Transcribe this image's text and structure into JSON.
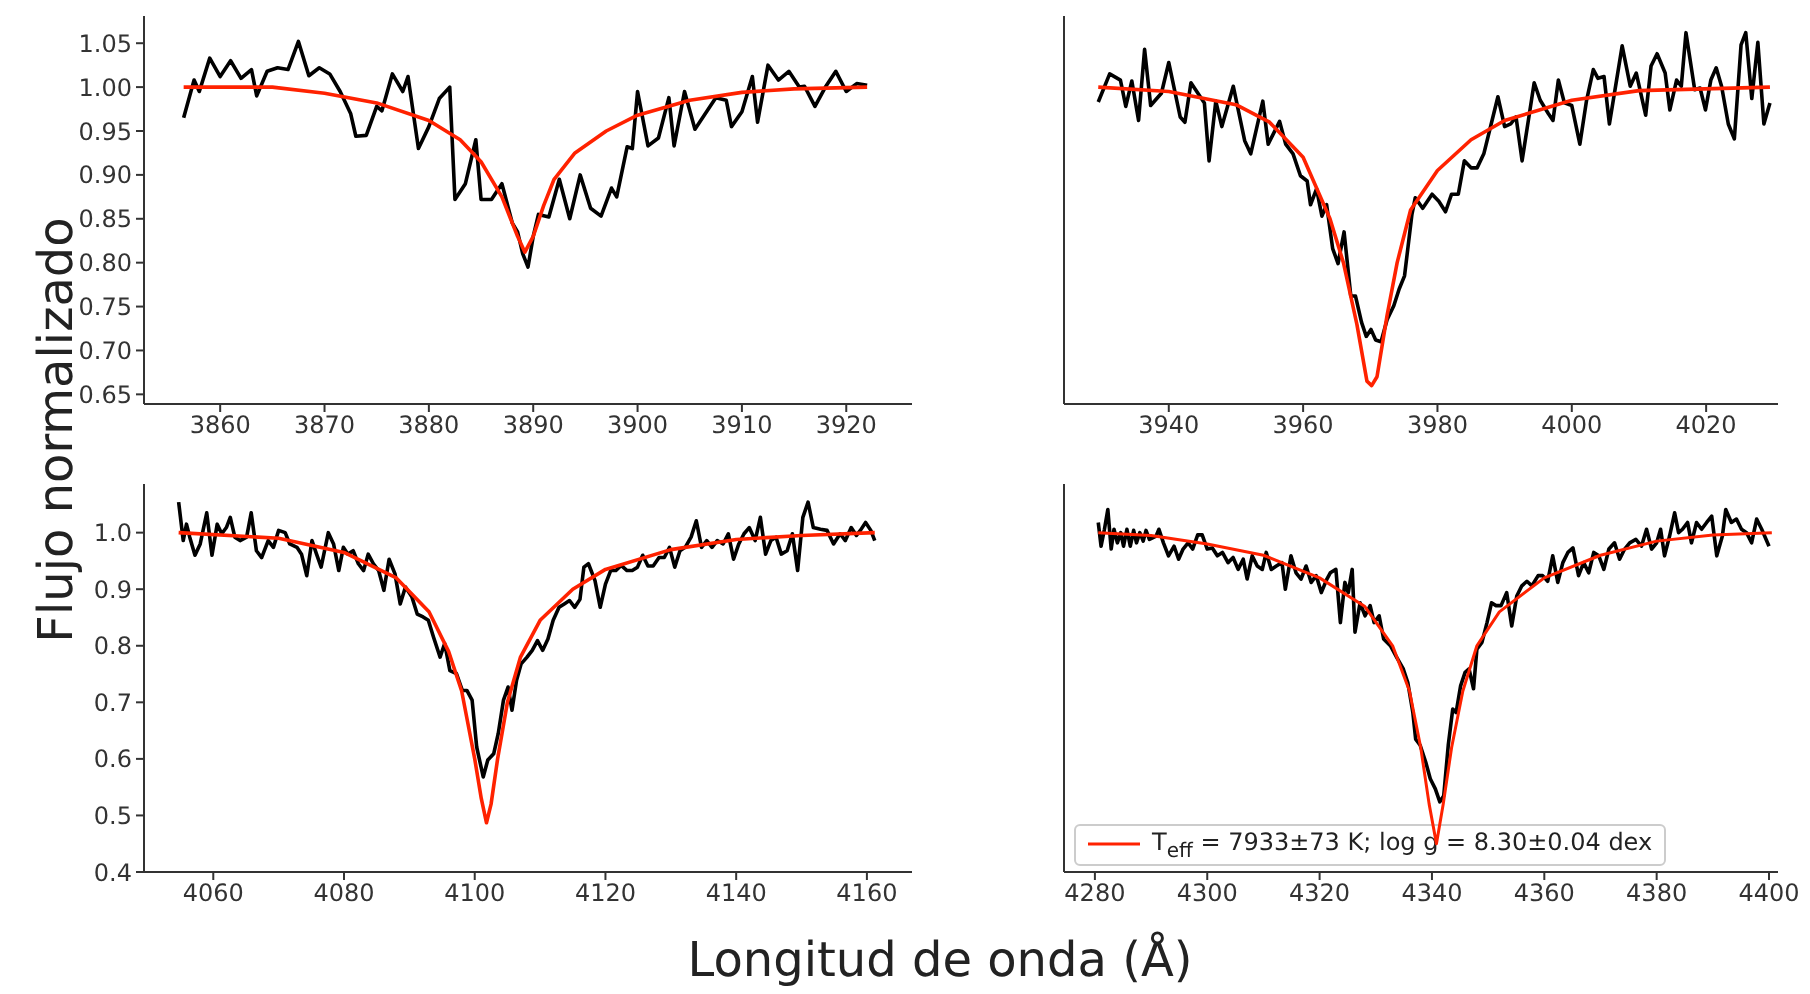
{
  "chart_data": [
    {
      "type": "line",
      "ylabel": "Flujo normalizado",
      "xlim": [
        3852.7,
        3926.3
      ],
      "xticks": [
        3860,
        3870,
        3880,
        3890,
        3900,
        3910,
        3920
      ],
      "ylim": [
        0.639,
        1.081
      ],
      "yticks": [
        0.65,
        {
          "value": 0.7,
          "label": "0.70"
        },
        0.75,
        {
          "value": 0.8,
          "label": "0.80"
        },
        0.85,
        {
          "value": 0.9,
          "label": "0.90"
        },
        0.95,
        {
          "value": 1,
          "label": "1.00"
        },
        1.05
      ],
      "series": [
        {
          "color": "#000000",
          "x": [
            3856.5,
            3857.5,
            3858,
            3859,
            3860,
            3861,
            3862,
            3863,
            3863.5,
            3864.5,
            3865.5,
            3866.5,
            3867.5,
            3868.5,
            3869.5,
            3870.5,
            3871.5,
            3872.5,
            3873,
            3874,
            3875,
            3875.5,
            3876.5,
            3877.5,
            3878,
            3879,
            3880,
            3881,
            3882,
            3882.5,
            3883.5,
            3884.5,
            3885,
            3886,
            3887,
            3888,
            3888.5,
            3889,
            3889.5,
            3890,
            3890.5,
            3891.5,
            3892.5,
            3893.5,
            3894.5,
            3895.5,
            3896.5,
            3897.5,
            3898,
            3899,
            3899.5,
            3900,
            3901,
            3902,
            3903,
            3903.5,
            3904.5,
            3905.5,
            3906.5,
            3907.5,
            3908.5,
            3909,
            3910,
            3911,
            3911.5,
            3912.5,
            3913.5,
            3914.5,
            3915.5,
            3916,
            3917,
            3918,
            3919,
            3920,
            3921,
            3922
          ],
          "values": [
            0.965,
            1.008,
            0.995,
            1.033,
            1.012,
            1.03,
            1.01,
            1.02,
            0.99,
            1.018,
            1.022,
            1.02,
            1.052,
            1.013,
            1.022,
            1.015,
            0.995,
            0.97,
            0.944,
            0.945,
            0.978,
            0.973,
            1.015,
            0.995,
            1.012,
            0.93,
            0.955,
            0.987,
            1.0,
            0.872,
            0.89,
            0.94,
            0.872,
            0.872,
            0.89,
            0.845,
            0.835,
            0.81,
            0.795,
            0.83,
            0.855,
            0.852,
            0.895,
            0.85,
            0.9,
            0.862,
            0.853,
            0.885,
            0.875,
            0.932,
            0.93,
            0.995,
            0.933,
            0.942,
            0.988,
            0.933,
            0.995,
            0.952,
            0.97,
            0.988,
            0.985,
            0.955,
            0.972,
            1.012,
            0.96,
            1.025,
            1.008,
            1.018,
            1.0,
            1.001,
            0.978,
            1.0,
            1.018,
            0.995,
            1.004,
            1.002
          ]
        },
        {
          "color": "#ff2200",
          "x": [
            3856.5,
            3865,
            3870,
            3875,
            3880,
            3883,
            3885,
            3887,
            3888.5,
            3889.2,
            3890,
            3891,
            3892,
            3894,
            3897,
            3900,
            3905,
            3910,
            3915,
            3922
          ],
          "values": [
            1.0,
            1.0,
            0.993,
            0.982,
            0.962,
            0.94,
            0.915,
            0.875,
            0.83,
            0.812,
            0.83,
            0.865,
            0.895,
            0.925,
            0.95,
            0.968,
            0.985,
            0.994,
            0.998,
            1.0
          ]
        }
      ]
    },
    {
      "type": "line",
      "tick_labels": "x",
      "xlim": [
        3924.4,
        4030.7
      ],
      "xticks": [
        3940,
        3960,
        3980,
        4000,
        4020
      ],
      "ylim": [
        0.639,
        1.081
      ],
      "yticks": [
        0.65,
        0.7,
        0.75,
        0.8,
        0.85,
        0.9,
        0.95,
        1,
        1.05
      ],
      "series": [
        {
          "color": "#000000",
          "x": [
            3929.5,
            3931.2,
            3932.8,
            3933.6,
            3934.5,
            3935.5,
            3936.4,
            3937.3,
            3938.9,
            3940,
            3941.7,
            3942.4,
            3943.3,
            3945.3,
            3946.0,
            3947.0,
            3947.9,
            3949.6,
            3951.3,
            3952.2,
            3954.0,
            3954.8,
            3956.5,
            3957.4,
            3958.5,
            3959.6,
            3960.6,
            3961.1,
            3962.0,
            3962.8,
            3963.5,
            3964.4,
            3965.2,
            3966.1,
            3967.1,
            3967.8,
            3968.7,
            3969.4,
            3970.1,
            3970.8,
            3971.6,
            3972.5,
            3973.5,
            3974.3,
            3975.1,
            3976.2,
            3976.7,
            3977.8,
            3979.2,
            3980.2,
            3981.2,
            3982.1,
            3983.1,
            3984.0,
            3985.0,
            3985.9,
            3986.9,
            3988.0,
            3989.0,
            3990.0,
            3990.9,
            3991.7,
            3992.6,
            3994.4,
            3995.3,
            3996.5,
            3997.2,
            3998.0,
            3998.9,
            4000.0,
            4001.2,
            4002.2,
            4003.2,
            4003.9,
            4004.8,
            4005.6,
            4007.5,
            4008.7,
            4009.6,
            4011.0,
            4011.8,
            4012.7,
            4013.9,
            4014.6,
            4015.6,
            4016.3,
            4017.0,
            4018.3,
            4019.1,
            4019.9,
            4020.7,
            4021.5,
            4022.3,
            4023.3,
            4024.2,
            4025.2,
            4025.9,
            4026.8,
            4027.7,
            4028.6,
            4029.5
          ],
          "values": [
            0.983,
            1.015,
            1.008,
            0.978,
            1.007,
            0.962,
            1.043,
            0.979,
            0.993,
            1.028,
            0.966,
            0.96,
            1.005,
            0.982,
            0.916,
            0.984,
            0.955,
            1.001,
            0.939,
            0.924,
            0.984,
            0.935,
            0.961,
            0.935,
            0.924,
            0.899,
            0.893,
            0.866,
            0.884,
            0.853,
            0.866,
            0.816,
            0.799,
            0.835,
            0.762,
            0.762,
            0.732,
            0.716,
            0.724,
            0.712,
            0.71,
            0.735,
            0.751,
            0.77,
            0.785,
            0.855,
            0.874,
            0.862,
            0.878,
            0.87,
            0.858,
            0.878,
            0.878,
            0.916,
            0.908,
            0.908,
            0.924,
            0.958,
            0.989,
            0.955,
            0.958,
            0.966,
            0.916,
            1.005,
            0.985,
            0.97,
            0.962,
            1.008,
            0.982,
            0.979,
            0.935,
            0.985,
            1.02,
            1.01,
            1.012,
            0.958,
            1.047,
            1.001,
            1.016,
            0.968,
            1.024,
            1.038,
            1.016,
            0.974,
            1.008,
            1.001,
            1.062,
            0.997,
            0.999,
            0.974,
            1.008,
            1.022,
            1.001,
            0.958,
            0.941,
            1.048,
            1.062,
            0.987,
            1.051,
            0.958,
            0.982
          ]
        },
        {
          "color": "#ff2200",
          "x": [
            3929.5,
            3940,
            3950,
            3955,
            3960,
            3964,
            3966,
            3968,
            3969.5,
            3970.2,
            3971,
            3972.5,
            3974,
            3976,
            3980,
            3985,
            3990,
            4000,
            4010,
            4029.5
          ],
          "values": [
            1.0,
            0.995,
            0.98,
            0.96,
            0.92,
            0.85,
            0.8,
            0.73,
            0.665,
            0.66,
            0.67,
            0.74,
            0.8,
            0.86,
            0.905,
            0.94,
            0.962,
            0.985,
            0.996,
            1.0
          ]
        }
      ]
    },
    {
      "type": "line",
      "xlabel": "Longitud de onda (Å)",
      "xlim": [
        4049.4,
        4166.9
      ],
      "xticks": [
        4060,
        4080,
        4100,
        4120,
        4140,
        4160
      ],
      "ylim": [
        0.4,
        1.086
      ],
      "yticks": [
        0.4,
        0.5,
        0.6,
        0.7,
        0.8,
        0.9,
        {
          "value": 1,
          "label": "1.0"
        }
      ],
      "series": [
        {
          "color": "#000000",
          "x": [
            4054.7,
            4055.4,
            4055.9,
            4056.4,
            4057.2,
            4058.0,
            4059.0,
            4059.8,
            4060.6,
            4061.3,
            4062.0,
            4062.6,
            4063.3,
            4064.1,
            4065.1,
            4065.8,
            4066.6,
            4067.4,
            4068.4,
            4069.2,
            4070.0,
            4071.0,
            4071.7,
            4072.8,
            4073.5,
            4074.3,
            4075.1,
            4075.8,
            4076.5,
            4077.6,
            4078.4,
            4079.2,
            4079.9,
            4080.6,
            4081.4,
            4082.2,
            4083.0,
            4083.7,
            4084.5,
            4085.3,
            4086.1,
            4086.9,
            4087.8,
            4088.6,
            4089.4,
            4090.4,
            4091.2,
            4092.1,
            4092.9,
            4093.7,
            4094.7,
            4095.4,
            4096.2,
            4097.2,
            4098.1,
            4098.8,
            4099.6,
            4100.3,
            4101.3,
            4102.0,
            4102.9,
            4103.6,
            4104.4,
            4105.1,
            4105.7,
            4106.4,
            4107.1,
            4108.0,
            4108.8,
            4109.6,
            4110.4,
            4111.2,
            4112.0,
            4112.9,
            4113.7,
            4114.5,
            4115.3,
            4116.1,
            4116.7,
            4117.4,
            4118.4,
            4119.2,
            4120.0,
            4120.8,
            4121.6,
            4122.4,
            4123.3,
            4124.1,
            4124.9,
            4125.7,
            4126.5,
            4127.3,
            4128.2,
            4129.0,
            4129.8,
            4130.6,
            4131.4,
            4132.2,
            4133.1,
            4133.9,
            4134.7,
            4135.5,
            4136.3,
            4137.1,
            4138.0,
            4138.8,
            4139.6,
            4140.4,
            4141.2,
            4142.0,
            4142.9,
            4143.7,
            4144.5,
            4145.3,
            4146.1,
            4146.9,
            4147.8,
            4148.6,
            4149.4,
            4150.2,
            4151.0,
            4151.8,
            4152.9,
            4153.9,
            4154.9,
            4155.9,
            4156.7,
            4157.6,
            4158.4,
            4159.0,
            4159.8,
            4160.6,
            4161.2
          ],
          "values": [
            1.054,
            0.986,
            1.015,
            0.992,
            0.96,
            0.98,
            1.035,
            0.96,
            1.015,
            0.998,
            1.009,
            1.027,
            0.992,
            0.986,
            0.992,
            1.035,
            0.968,
            0.956,
            0.986,
            0.974,
            1.004,
            1.0,
            0.98,
            0.974,
            0.962,
            0.924,
            0.986,
            0.962,
            0.939,
            1.0,
            0.98,
            0.933,
            0.974,
            0.962,
            0.968,
            0.945,
            0.933,
            0.962,
            0.945,
            0.933,
            0.898,
            0.953,
            0.927,
            0.874,
            0.904,
            0.886,
            0.856,
            0.851,
            0.845,
            0.815,
            0.78,
            0.804,
            0.756,
            0.751,
            0.721,
            0.721,
            0.704,
            0.621,
            0.568,
            0.598,
            0.609,
            0.645,
            0.704,
            0.727,
            0.686,
            0.739,
            0.768,
            0.78,
            0.792,
            0.809,
            0.792,
            0.812,
            0.845,
            0.868,
            0.874,
            0.88,
            0.868,
            0.882,
            0.939,
            0.945,
            0.915,
            0.868,
            0.909,
            0.933,
            0.933,
            0.942,
            0.933,
            0.933,
            0.939,
            0.96,
            0.941,
            0.941,
            0.956,
            0.956,
            0.974,
            0.939,
            0.968,
            0.974,
            0.992,
            1.021,
            0.974,
            0.986,
            0.974,
            0.986,
            0.98,
            0.998,
            0.953,
            0.98,
            0.998,
            1.009,
            0.986,
            1.027,
            0.962,
            0.986,
            0.992,
            0.962,
            0.968,
            0.998,
            0.933,
            1.027,
            1.054,
            1.009,
            1.006,
            1.004,
            0.98,
            0.998,
            0.986,
            1.009,
            0.995,
            1.004,
            1.018,
            1.004,
            0.986
          ]
        },
        {
          "color": "#ff2200",
          "x": [
            4054.7,
            4070,
            4080,
            4088,
            4093,
            4096,
            4098,
            4100,
            4101,
            4101.8,
            4102.5,
            4103.5,
            4105,
            4107,
            4110,
            4115,
            4120,
            4130,
            4140,
            4150,
            4161.2
          ],
          "values": [
            1.0,
            0.99,
            0.965,
            0.92,
            0.86,
            0.79,
            0.72,
            0.6,
            0.53,
            0.487,
            0.52,
            0.6,
            0.7,
            0.78,
            0.845,
            0.9,
            0.935,
            0.97,
            0.988,
            0.995,
            1.0
          ]
        }
      ]
    },
    {
      "type": "line",
      "tick_labels": "x",
      "legend": "bottom left",
      "xlim": [
        4274.5,
        4401.6
      ],
      "xticks": [
        4280,
        4300,
        4320,
        4340,
        4360,
        4380,
        4400
      ],
      "ylim": [
        0.4,
        1.086
      ],
      "yticks": [
        0.4,
        0.5,
        0.6,
        0.7,
        0.8,
        0.9,
        1
      ],
      "series": [
        {
          "color": "#000000",
          "x": [
            4280.6,
            4281.1,
            4281.7,
            4282.3,
            4282.9,
            4283.4,
            4284.0,
            4284.6,
            4285.1,
            4285.7,
            4286.3,
            4286.9,
            4287.4,
            4288.0,
            4288.6,
            4289.1,
            4289.7,
            4290.9,
            4291.4,
            4292.2,
            4293.1,
            4294.1,
            4294.9,
            4295.7,
            4296.6,
            4297.4,
            4298.3,
            4299.1,
            4300.0,
            4300.9,
            4301.8,
            4302.7,
            4303.7,
            4304.6,
            4305.5,
            4306.4,
            4307.1,
            4308.0,
            4308.9,
            4309.8,
            4310.5,
            4311.4,
            4312.3,
            4313.3,
            4313.9,
            4314.9,
            4315.8,
            4316.7,
            4317.6,
            4318.5,
            4319.4,
            4320.3,
            4321.3,
            4321.9,
            4322.9,
            4323.7,
            4324.5,
            4325.1,
            4325.8,
            4326.3,
            4327.2,
            4328.1,
            4329.0,
            4329.7,
            4330.6,
            4331.4,
            4332.6,
            4333.7,
            4334.9,
            4335.7,
            4336.6,
            4337.1,
            4337.9,
            4338.9,
            4339.7,
            4340.6,
            4341.4,
            4342.1,
            4342.9,
            4343.7,
            4344.3,
            4345.1,
            4345.9,
            4346.6,
            4347.4,
            4348.0,
            4348.9,
            4349.8,
            4350.6,
            4351.4,
            4352.3,
            4353.3,
            4354.2,
            4355.1,
            4356.0,
            4356.9,
            4357.8,
            4358.9,
            4359.7,
            4360.6,
            4361.5,
            4362.4,
            4363.3,
            4364.2,
            4365.1,
            4366.1,
            4367.0,
            4367.9,
            4368.8,
            4369.7,
            4370.6,
            4371.5,
            4372.5,
            4373.4,
            4374.3,
            4375.2,
            4376.3,
            4377.3,
            4378.2,
            4379.1,
            4380.0,
            4380.7,
            4381.4,
            4382.3,
            4383.2,
            4383.9,
            4384.6,
            4385.5,
            4386.2,
            4387.1,
            4388.0,
            4388.9,
            4389.8,
            4390.7,
            4391.7,
            4392.3,
            4393.3,
            4394.2,
            4395.1,
            4396.0,
            4396.9,
            4397.8,
            4398.7,
            4400.0
          ],
          "values": [
            1.018,
            0.976,
            1.006,
            1.041,
            0.971,
            1.006,
            0.982,
            1.0,
            0.976,
            1.006,
            0.976,
            1.004,
            0.982,
            1.0,
            0.985,
            1.004,
            0.988,
            0.994,
            1.006,
            0.982,
            0.959,
            0.976,
            0.953,
            0.971,
            0.982,
            0.971,
            0.996,
            0.996,
            0.971,
            0.973,
            0.959,
            0.965,
            0.947,
            0.956,
            0.935,
            0.953,
            0.918,
            0.959,
            0.941,
            0.935,
            0.965,
            0.935,
            0.941,
            0.947,
            0.9,
            0.959,
            0.929,
            0.918,
            0.941,
            0.912,
            0.924,
            0.894,
            0.918,
            0.929,
            0.935,
            0.841,
            0.912,
            0.894,
            0.935,
            0.824,
            0.876,
            0.853,
            0.871,
            0.841,
            0.853,
            0.812,
            0.8,
            0.78,
            0.759,
            0.735,
            0.682,
            0.635,
            0.624,
            0.594,
            0.565,
            0.547,
            0.524,
            0.535,
            0.624,
            0.688,
            0.682,
            0.729,
            0.753,
            0.759,
            0.724,
            0.794,
            0.806,
            0.841,
            0.876,
            0.871,
            0.871,
            0.894,
            0.835,
            0.888,
            0.906,
            0.914,
            0.906,
            0.924,
            0.924,
            0.914,
            0.959,
            0.912,
            0.947,
            0.965,
            0.973,
            0.924,
            0.947,
            0.929,
            0.965,
            0.959,
            0.935,
            0.971,
            0.982,
            0.953,
            0.971,
            0.982,
            0.988,
            0.976,
            1.006,
            0.971,
            0.982,
            1.006,
            0.959,
            0.994,
            1.035,
            1.0,
            1.006,
            1.018,
            0.982,
            1.018,
            1.006,
            1.018,
            1.029,
            0.959,
            0.994,
            1.041,
            1.018,
            1.024,
            1.006,
            1.0,
            0.982,
            1.024,
            1.006,
            0.976
          ]
        },
        {
          "name": "T$_{eff}$ = 7933±73 K; log g = 8.30±0.04 dex",
          "color": "#ff2200",
          "x": [
            4280.6,
            4290,
            4300,
            4310,
            4320,
            4328,
            4333,
            4336,
            4338,
            4339.5,
            4340.8,
            4342,
            4343.5,
            4345.5,
            4348,
            4352,
            4360,
            4370,
            4380,
            4390,
            4400.5
          ],
          "values": [
            1.0,
            0.995,
            0.98,
            0.96,
            0.92,
            0.87,
            0.8,
            0.72,
            0.62,
            0.52,
            0.45,
            0.52,
            0.62,
            0.72,
            0.8,
            0.86,
            0.92,
            0.96,
            0.985,
            0.996,
            1.0
          ]
        }
      ]
    }
  ]
}
